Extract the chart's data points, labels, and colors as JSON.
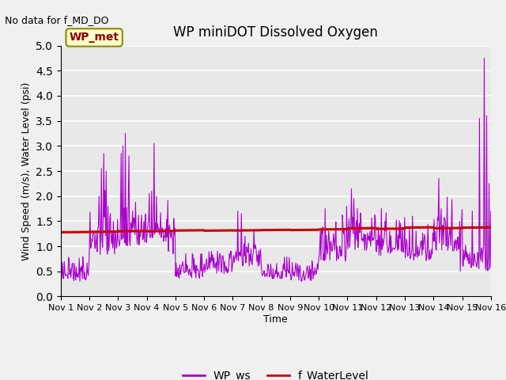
{
  "title": "WP miniDOT Dissolved Oxygen",
  "xlabel": "Time",
  "ylabel": "Wind Speed (m/s), Water Level (psi)",
  "annotation_text": "No data for f_MD_DO",
  "legend_label_text": "WP_met",
  "legend_box_bg": "#ffffcc",
  "legend_box_edge": "#8b0000",
  "ylim": [
    0.0,
    5.0
  ],
  "yticks": [
    0.0,
    0.5,
    1.0,
    1.5,
    2.0,
    2.5,
    3.0,
    3.5,
    4.0,
    4.5,
    5.0
  ],
  "ws_color": "#aa00cc",
  "wl_color": "#cc0000",
  "fig_bg_color": "#f0f0f0",
  "axes_bg_color": "#e8e8e8",
  "legend_ws_label": "WP_ws",
  "legend_wl_label": "f_WaterLevel",
  "xtick_labels": [
    "Nov 1",
    "Nov 2",
    "Nov 3",
    "Nov 4",
    "Nov 5",
    "Nov 6",
    "Nov 7",
    "Nov 8",
    "Nov 9",
    "Nov 10",
    "Nov 11",
    "Nov 12",
    "Nov 13",
    "Nov 14",
    "Nov 15",
    "Nov 16"
  ],
  "n_days": 15,
  "pts_per_day": 48,
  "seed": 42
}
